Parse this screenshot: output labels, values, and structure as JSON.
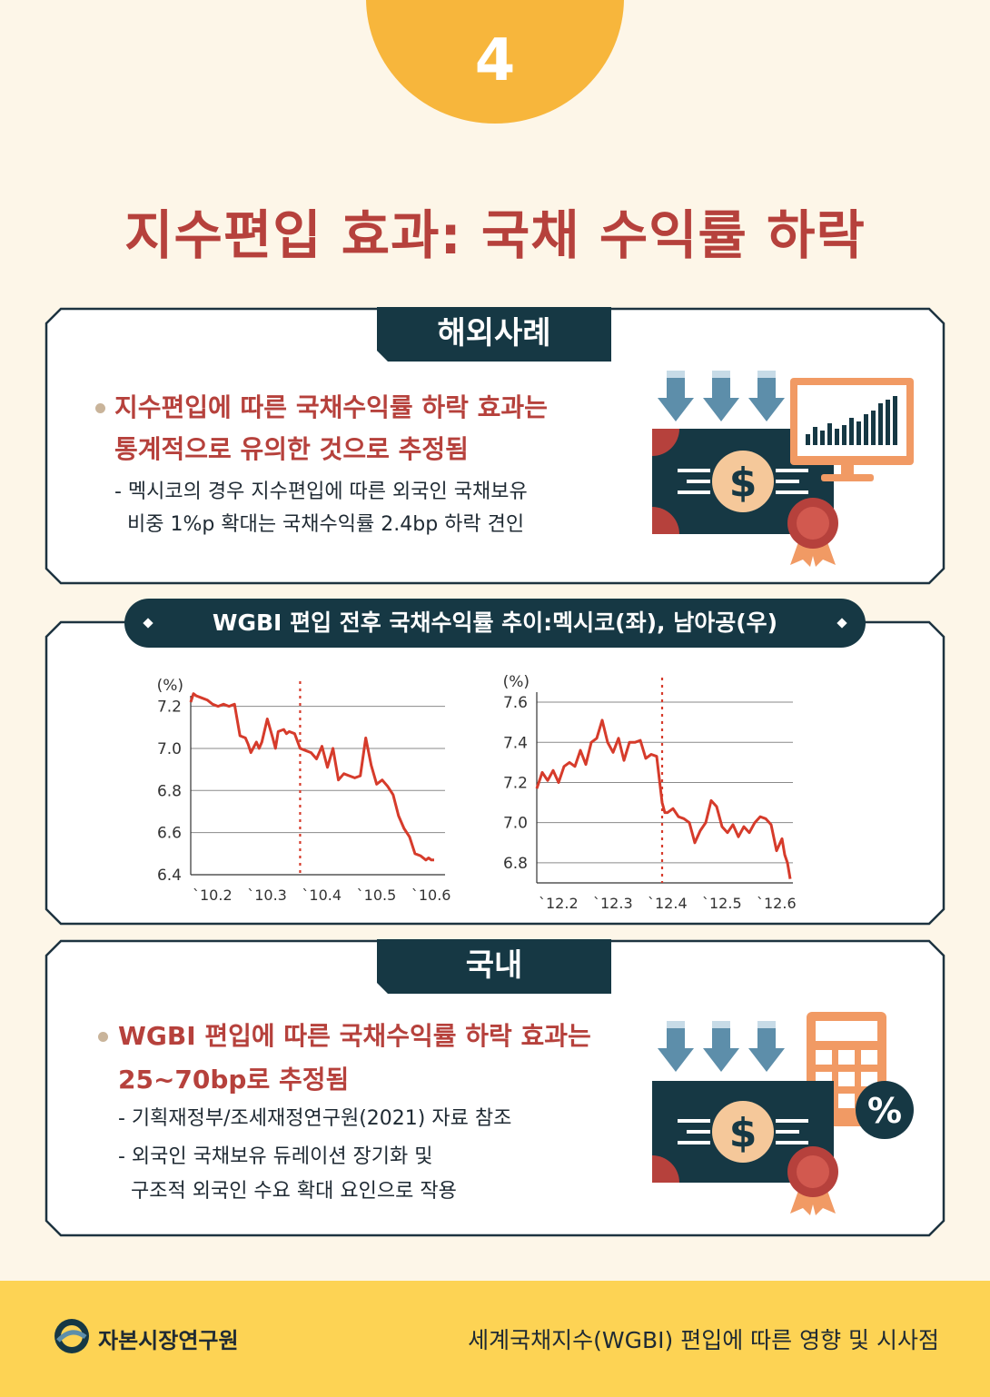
{
  "page": {
    "number": "4",
    "title": "지수편입 효과: 국채 수익률 하락"
  },
  "overseas": {
    "tab": "해외사례",
    "headline_1": "지수편입에 따른 국채수익률 하락 효과는",
    "headline_2": "통계적으로 유의한 것으로 추정됨",
    "detail_1": "- 멕시코의 경우 지수편입에 따른 외국인 국채보유",
    "detail_2": "비중 1%p 확대는 국채수익률 2.4bp 하락 견인",
    "icon": "dollar-bill-monitor-chart-icon"
  },
  "chart_section": {
    "title": "WGBI 편입 전후 국채수익률 추이:멕시코(좌), 남아공(우)"
  },
  "chart_data": [
    {
      "type": "line",
      "ylabel": "(%)",
      "ylim": [
        6.4,
        7.25
      ],
      "yticks": [
        "7.2",
        "7.0",
        "6.8",
        "6.6",
        "6.4"
      ],
      "ytick_values": [
        7.2,
        7.0,
        6.8,
        6.6,
        6.4
      ],
      "xticks": [
        "`10.2",
        "`10.3",
        "`10.4",
        "`10.5",
        "`10.6"
      ],
      "xlim": [
        0,
        4.65
      ],
      "inclusion_marker_x": 2,
      "series": [
        {
          "color": "#d63b2b",
          "x": [
            0.0,
            0.05,
            0.1,
            0.2,
            0.3,
            0.4,
            0.5,
            0.6,
            0.7,
            0.8,
            0.9,
            1.0,
            1.05,
            1.1,
            1.2,
            1.25,
            1.3,
            1.4,
            1.5,
            1.55,
            1.6,
            1.7,
            1.75,
            1.8,
            1.9,
            2.0,
            2.1,
            2.2,
            2.3,
            2.4,
            2.5,
            2.6,
            2.7,
            2.8,
            2.9,
            3.0,
            3.1,
            3.2,
            3.3,
            3.4,
            3.5,
            3.6,
            3.7,
            3.75,
            3.8,
            3.9,
            4.0,
            4.1,
            4.2,
            4.3,
            4.35,
            4.4,
            4.45
          ],
          "y": [
            7.22,
            7.26,
            7.25,
            7.24,
            7.23,
            7.21,
            7.2,
            7.21,
            7.2,
            7.21,
            7.06,
            7.05,
            7.02,
            6.98,
            7.03,
            7.0,
            7.03,
            7.14,
            7.05,
            7.0,
            7.08,
            7.09,
            7.07,
            7.08,
            7.07,
            7.0,
            6.99,
            6.98,
            6.95,
            7.01,
            6.91,
            7.0,
            6.85,
            6.88,
            6.87,
            6.86,
            6.87,
            7.05,
            6.92,
            6.83,
            6.85,
            6.82,
            6.78,
            6.73,
            6.68,
            6.62,
            6.58,
            6.5,
            6.49,
            6.47,
            6.48,
            6.47,
            6.47
          ]
        }
      ]
    },
    {
      "type": "line",
      "ylabel": "(%)",
      "ylim": [
        6.7,
        7.65
      ],
      "yticks": [
        "7.6",
        "7.4",
        "7.2",
        "7.0",
        "6.8"
      ],
      "ytick_values": [
        7.6,
        7.4,
        7.2,
        7.0,
        6.8
      ],
      "xticks": [
        "`12.2",
        "`12.3",
        "`12.4",
        "`12.5",
        "`12.6"
      ],
      "xlim": [
        0,
        4.7
      ],
      "inclusion_marker_x": 2.3,
      "series": [
        {
          "color": "#d63b2b",
          "x": [
            0.0,
            0.1,
            0.2,
            0.3,
            0.4,
            0.5,
            0.6,
            0.7,
            0.8,
            0.9,
            1.0,
            1.1,
            1.2,
            1.3,
            1.4,
            1.5,
            1.6,
            1.7,
            1.8,
            1.9,
            2.0,
            2.1,
            2.2,
            2.3,
            2.35,
            2.4,
            2.5,
            2.6,
            2.7,
            2.8,
            2.9,
            3.0,
            3.1,
            3.2,
            3.3,
            3.4,
            3.5,
            3.6,
            3.7,
            3.8,
            3.9,
            4.0,
            4.1,
            4.2,
            4.3,
            4.4,
            4.5,
            4.55,
            4.6,
            4.65
          ],
          "y": [
            7.17,
            7.25,
            7.21,
            7.26,
            7.2,
            7.28,
            7.3,
            7.28,
            7.36,
            7.29,
            7.4,
            7.42,
            7.51,
            7.4,
            7.35,
            7.42,
            7.31,
            7.4,
            7.4,
            7.41,
            7.32,
            7.34,
            7.33,
            7.1,
            7.05,
            7.05,
            7.07,
            7.03,
            7.02,
            7.0,
            6.9,
            6.96,
            7.0,
            7.11,
            7.08,
            6.98,
            6.95,
            6.99,
            6.93,
            6.98,
            6.95,
            7.0,
            7.03,
            7.02,
            6.99,
            6.86,
            6.92,
            6.84,
            6.8,
            6.72
          ]
        }
      ]
    }
  ],
  "domestic": {
    "tab": "국내",
    "headline_1": "WGBI 편입에 따른 국채수익률 하락 효과는",
    "headline_2": "25~70bp로 추정됨",
    "detail_1": "- 기획재정부/조세재정연구원(2021) 자료 참조",
    "detail_2": "- 외국인 국채보유 듀레이션 장기화 및",
    "detail_3": "구조적 외국인 수요 확대 요인으로 작용",
    "icon": "dollar-bill-calculator-percent-icon",
    "percent_symbol": "%"
  },
  "footer": {
    "org": "자본시장연구원",
    "document": "세계국채지수(WGBI) 편입에 따른 영향 및 시사점"
  },
  "colors": {
    "background": "#fdf6e8",
    "accent_red": "#b6413c",
    "navy": "#163844",
    "badge": "#f7b63c",
    "footer": "#fdd354",
    "line": "#d63b2b"
  }
}
